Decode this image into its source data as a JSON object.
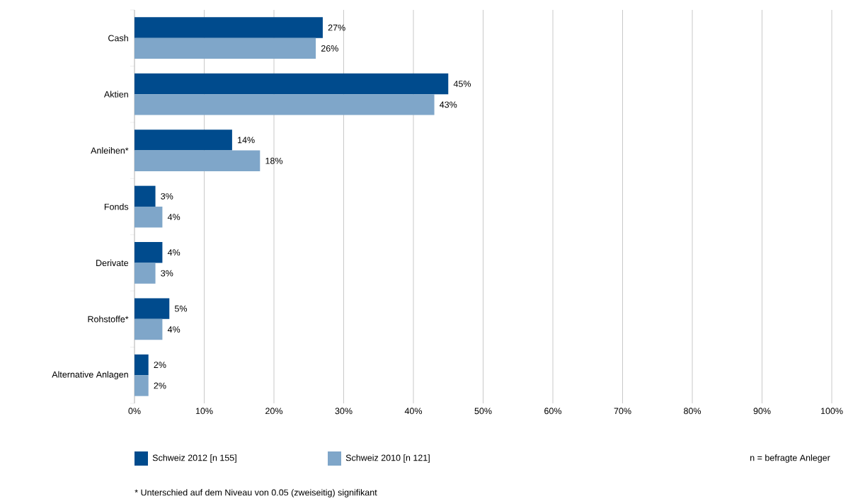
{
  "chart_data": {
    "type": "bar",
    "orientation": "horizontal",
    "categories": [
      "Cash",
      "Aktien",
      "Anleihen*",
      "Fonds",
      "Derivate",
      "Rohstoffe*",
      "Alternative Anlagen"
    ],
    "series": [
      {
        "name": "Schweiz 2012 [n 155]",
        "color": "#004b8d",
        "values": [
          27,
          45,
          14,
          3,
          4,
          5,
          2
        ],
        "value_labels": [
          "27%",
          "45%",
          "14%",
          "3%",
          "4%",
          "5%",
          "2%"
        ]
      },
      {
        "name": "Schweiz 2010 [n 121]",
        "color": "#7fa6c9",
        "values": [
          26,
          43,
          18,
          4,
          3,
          4,
          2
        ],
        "value_labels": [
          "26%",
          "43%",
          "18%",
          "4%",
          "3%",
          "4%",
          "2%"
        ]
      }
    ],
    "xlim": [
      0,
      100
    ],
    "xticks": [
      {
        "value": 0,
        "label": "0%"
      },
      {
        "value": 10,
        "label": "10%"
      },
      {
        "value": 20,
        "label": "20%"
      },
      {
        "value": 30,
        "label": "30%"
      },
      {
        "value": 40,
        "label": "40%"
      },
      {
        "value": 50,
        "label": "50%"
      },
      {
        "value": 60,
        "label": "60%"
      },
      {
        "value": 70,
        "label": "70%"
      },
      {
        "value": 80,
        "label": "80%"
      },
      {
        "value": 90,
        "label": "90%"
      },
      {
        "value": 100,
        "label": "100%"
      }
    ],
    "grid": "x",
    "legend": "bottom",
    "annotations": [
      "n = befragte Anleger",
      "* Unterschied auf dem Niveau von 0.05 (zweiseitig) signifikant"
    ]
  }
}
